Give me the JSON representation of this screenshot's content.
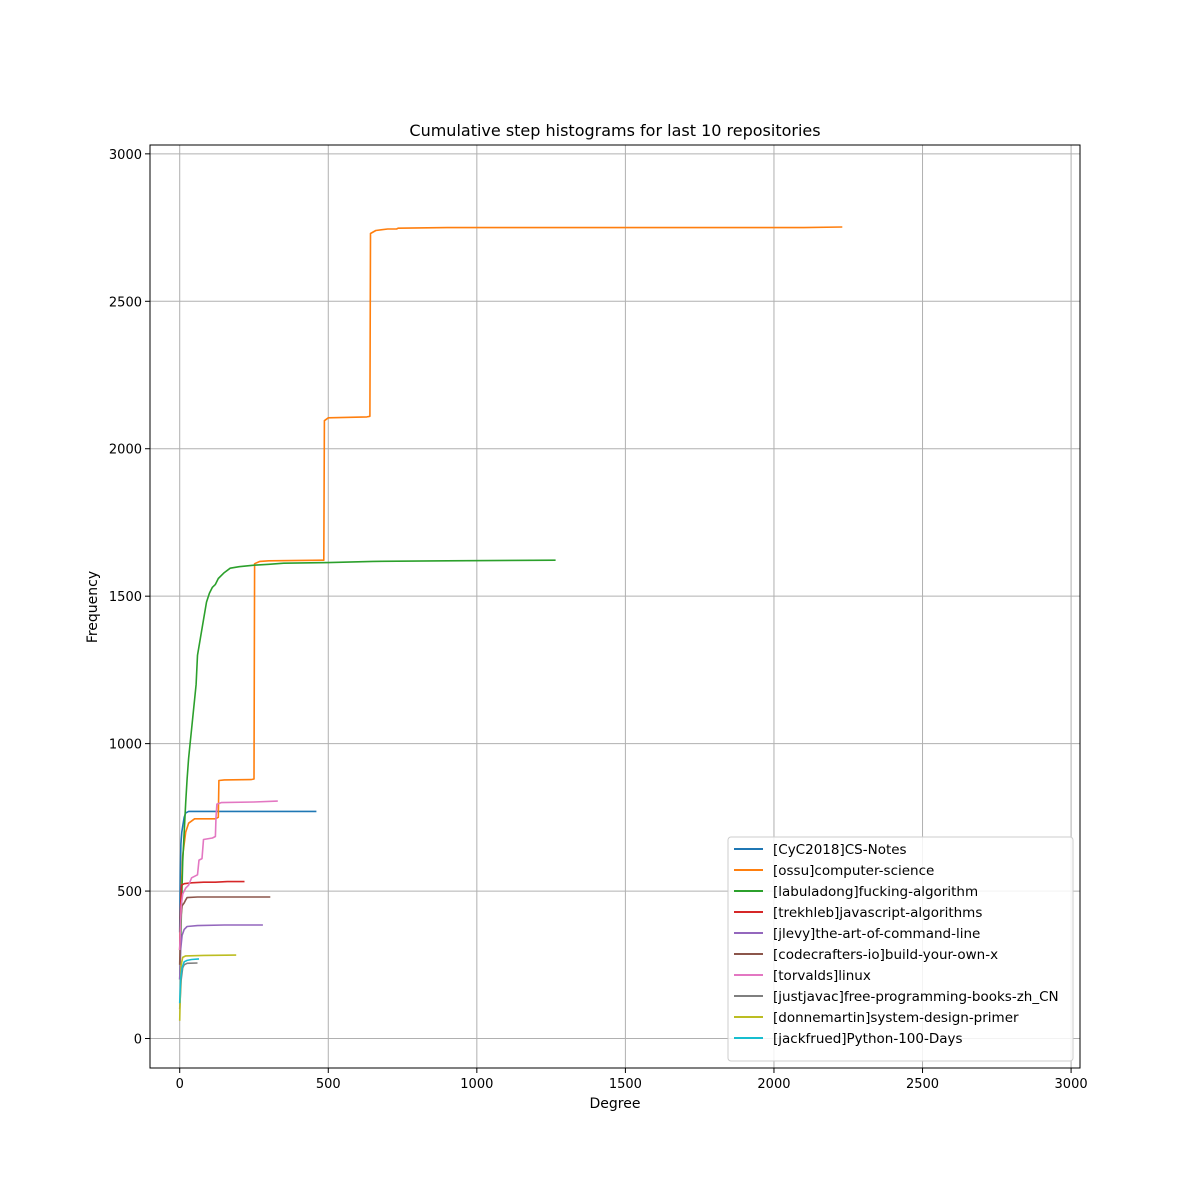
{
  "chart_data": {
    "type": "line",
    "title": "Cumulative step histograms for last 10 repositories",
    "xlabel": "Degree",
    "ylabel": "Frequency",
    "xlim": [
      -100,
      3030
    ],
    "ylim": [
      -100,
      3030
    ],
    "xticks": [
      0,
      500,
      1000,
      1500,
      2000,
      2500,
      3000
    ],
    "yticks": [
      0,
      500,
      1000,
      1500,
      2000,
      2500,
      3000
    ],
    "grid": true,
    "legend_position": "lower-right",
    "series": [
      {
        "name": "[CyC2018]CS-Notes",
        "color": "#1f77b4",
        "points": [
          [
            0,
            360
          ],
          [
            2,
            560
          ],
          [
            4,
            660
          ],
          [
            7,
            700
          ],
          [
            10,
            720
          ],
          [
            15,
            750
          ],
          [
            20,
            765
          ],
          [
            30,
            770
          ],
          [
            100,
            770
          ],
          [
            460,
            770
          ]
        ]
      },
      {
        "name": "[ossu]computer-science",
        "color": "#ff7f0e",
        "points": [
          [
            0,
            300
          ],
          [
            5,
            500
          ],
          [
            10,
            620
          ],
          [
            20,
            700
          ],
          [
            30,
            730
          ],
          [
            50,
            745
          ],
          [
            120,
            745
          ],
          [
            130,
            750
          ],
          [
            132,
            875
          ],
          [
            150,
            877
          ],
          [
            240,
            878
          ],
          [
            250,
            880
          ],
          [
            252,
            1610
          ],
          [
            270,
            1618
          ],
          [
            300,
            1620
          ],
          [
            480,
            1622
          ],
          [
            485,
            1622
          ],
          [
            487,
            2095
          ],
          [
            500,
            2105
          ],
          [
            630,
            2108
          ],
          [
            640,
            2110
          ],
          [
            642,
            2730
          ],
          [
            660,
            2740
          ],
          [
            700,
            2745
          ],
          [
            730,
            2745
          ],
          [
            735,
            2748
          ],
          [
            900,
            2750
          ],
          [
            2100,
            2750
          ],
          [
            2230,
            2752
          ]
        ]
      },
      {
        "name": "[labuladong]fucking-algorithm",
        "color": "#2ca02c",
        "points": [
          [
            0,
            200
          ],
          [
            5,
            400
          ],
          [
            10,
            600
          ],
          [
            15,
            700
          ],
          [
            20,
            800
          ],
          [
            25,
            880
          ],
          [
            30,
            950
          ],
          [
            35,
            1000
          ],
          [
            40,
            1050
          ],
          [
            45,
            1100
          ],
          [
            50,
            1150
          ],
          [
            55,
            1200
          ],
          [
            60,
            1300
          ],
          [
            70,
            1360
          ],
          [
            80,
            1420
          ],
          [
            90,
            1480
          ],
          [
            100,
            1510
          ],
          [
            110,
            1530
          ],
          [
            120,
            1540
          ],
          [
            130,
            1560
          ],
          [
            150,
            1580
          ],
          [
            170,
            1595
          ],
          [
            200,
            1600
          ],
          [
            250,
            1605
          ],
          [
            300,
            1608
          ],
          [
            350,
            1612
          ],
          [
            500,
            1614
          ],
          [
            650,
            1618
          ],
          [
            900,
            1620
          ],
          [
            1265,
            1622
          ]
        ]
      },
      {
        "name": "[trekhleb]javascript-algorithms",
        "color": "#d62728",
        "points": [
          [
            0,
            300
          ],
          [
            3,
            450
          ],
          [
            6,
            520
          ],
          [
            15,
            525
          ],
          [
            40,
            528
          ],
          [
            80,
            530
          ],
          [
            120,
            530
          ],
          [
            160,
            532
          ],
          [
            218,
            532
          ]
        ]
      },
      {
        "name": "[jlevy]the-art-of-command-line",
        "color": "#9467bd",
        "points": [
          [
            0,
            200
          ],
          [
            3,
            300
          ],
          [
            8,
            350
          ],
          [
            15,
            370
          ],
          [
            25,
            380
          ],
          [
            60,
            383
          ],
          [
            150,
            385
          ],
          [
            280,
            385
          ]
        ]
      },
      {
        "name": "[codecrafters-io]build-your-own-x",
        "color": "#8c564b",
        "points": [
          [
            0,
            250
          ],
          [
            3,
            400
          ],
          [
            8,
            450
          ],
          [
            15,
            460
          ],
          [
            20,
            470
          ],
          [
            25,
            478
          ],
          [
            60,
            480
          ],
          [
            305,
            480
          ]
        ]
      },
      {
        "name": "[torvalds]linux",
        "color": "#e377c2",
        "points": [
          [
            0,
            300
          ],
          [
            5,
            450
          ],
          [
            10,
            490
          ],
          [
            20,
            510
          ],
          [
            30,
            520
          ],
          [
            40,
            545
          ],
          [
            60,
            555
          ],
          [
            65,
            605
          ],
          [
            75,
            610
          ],
          [
            80,
            675
          ],
          [
            110,
            680
          ],
          [
            120,
            685
          ],
          [
            122,
            750
          ],
          [
            125,
            795
          ],
          [
            140,
            800
          ],
          [
            250,
            802
          ],
          [
            330,
            805
          ]
        ]
      },
      {
        "name": "[justjavac]free-programming-books-zh_CN",
        "color": "#7f7f7f",
        "points": [
          [
            0,
            100
          ],
          [
            5,
            200
          ],
          [
            10,
            240
          ],
          [
            15,
            250
          ],
          [
            25,
            255
          ],
          [
            60,
            256
          ]
        ]
      },
      {
        "name": "[donnemartin]system-design-primer",
        "color": "#bcbd22",
        "points": [
          [
            0,
            60
          ],
          [
            2,
            150
          ],
          [
            5,
            250
          ],
          [
            10,
            275
          ],
          [
            20,
            280
          ],
          [
            80,
            282
          ],
          [
            190,
            283
          ]
        ]
      },
      {
        "name": "[jackfrued]Python-100-Days",
        "color": "#17becf",
        "points": [
          [
            0,
            120
          ],
          [
            3,
            200
          ],
          [
            8,
            240
          ],
          [
            15,
            260
          ],
          [
            25,
            265
          ],
          [
            40,
            268
          ],
          [
            65,
            270
          ]
        ]
      }
    ]
  }
}
